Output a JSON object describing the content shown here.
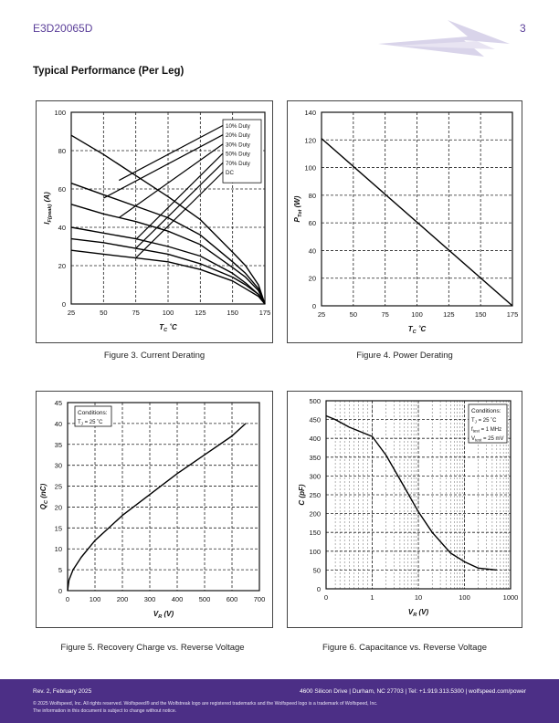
{
  "header": {
    "part_number": "E3D20065D",
    "page_number": "3",
    "brand_color": "#5b3f99"
  },
  "section_title": "Typical Performance (Per Leg)",
  "figures": [
    {
      "caption": "Figure 3. Current Derating"
    },
    {
      "caption": "Figure 4. Power Derating"
    },
    {
      "caption": "Figure 5. Recovery Charge vs. Reverse Voltage"
    },
    {
      "caption": "Figure 6. Capacitance vs. Reverse Voltage"
    }
  ],
  "chart_data": [
    {
      "type": "line",
      "xlabel": "T_C ˚C",
      "ylabel": "I_F(peak) (A)",
      "xlim": [
        25,
        175
      ],
      "ylim": [
        0,
        100
      ],
      "xticks": [
        25,
        50,
        75,
        100,
        125,
        150,
        175
      ],
      "yticks": [
        0,
        20,
        40,
        60,
        80,
        100
      ],
      "grid": true,
      "legend_position": "top-right",
      "x": [
        25,
        50,
        75,
        100,
        125,
        150,
        160,
        170,
        175
      ],
      "series": [
        {
          "name": "10% Duty",
          "values": [
            88,
            78,
            67,
            56,
            44,
            27,
            20,
            10,
            0
          ]
        },
        {
          "name": "20% Duty",
          "values": [
            63,
            57,
            51,
            45,
            36,
            22,
            16,
            8,
            0
          ]
        },
        {
          "name": "30% Duty",
          "values": [
            52,
            47,
            43,
            38,
            31,
            19,
            14,
            7,
            0
          ]
        },
        {
          "name": "50% Duty",
          "values": [
            40,
            37,
            34,
            30,
            25,
            16,
            11,
            5,
            0
          ]
        },
        {
          "name": "70% Duty",
          "values": [
            34,
            32,
            29,
            26,
            21,
            14,
            10,
            5,
            0
          ]
        },
        {
          "name": "DC",
          "values": [
            28,
            26,
            24,
            22,
            18,
            12,
            8,
            4,
            0
          ]
        }
      ]
    },
    {
      "type": "line",
      "xlabel": "T_C ˚C",
      "ylabel": "P_Tot (W)",
      "xlim": [
        25,
        175
      ],
      "ylim": [
        0,
        140
      ],
      "xticks": [
        25,
        50,
        75,
        100,
        125,
        150,
        175
      ],
      "yticks": [
        0,
        20,
        40,
        60,
        80,
        100,
        120,
        140
      ],
      "grid": true,
      "x": [
        25,
        175
      ],
      "series": [
        {
          "values": [
            121,
            0
          ]
        }
      ]
    },
    {
      "type": "line",
      "xlabel": "V_R (V)",
      "ylabel": "Q_C (nC)",
      "xlim": [
        0,
        700
      ],
      "ylim": [
        0,
        45
      ],
      "xticks": [
        0,
        100,
        200,
        300,
        400,
        500,
        600,
        700
      ],
      "yticks": [
        0,
        5,
        10,
        15,
        20,
        25,
        30,
        35,
        40,
        45
      ],
      "grid": true,
      "conditions_title": "Conditions:",
      "conditions": [
        "T_J = 25 ˚C"
      ],
      "x": [
        0,
        5,
        20,
        50,
        100,
        150,
        200,
        300,
        400,
        500,
        600,
        650
      ],
      "series": [
        {
          "values": [
            0,
            2.5,
            5,
            8,
            12,
            15,
            18,
            23,
            28,
            32.5,
            37,
            40
          ]
        }
      ]
    },
    {
      "type": "line",
      "xlabel": "V_R (V)",
      "ylabel": "C (pF)",
      "xscale": "log",
      "xlim": [
        0,
        1000
      ],
      "ylim": [
        0,
        500
      ],
      "xticks": [
        0,
        1,
        10,
        100,
        1000
      ],
      "yticks": [
        0,
        50,
        100,
        150,
        200,
        250,
        300,
        350,
        400,
        450,
        500
      ],
      "grid": true,
      "conditions_title": "Conditions:",
      "conditions": [
        "T_J = 25 ˚C",
        "f_test = 1 MHz",
        "V_test = 25 mV"
      ],
      "x": [
        0,
        0.2,
        0.5,
        1,
        2,
        5,
        10,
        20,
        50,
        100,
        200,
        500
      ],
      "series": [
        {
          "values": [
            460,
            450,
            430,
            405,
            355,
            270,
            205,
            150,
            95,
            72,
            55,
            50
          ]
        }
      ]
    }
  ],
  "footer": {
    "revision": "Rev. 2, February 2025",
    "contact": "4600 Silicon Drive | Durham, NC 27703 | Tel: +1.919.313.5300 | wolfspeed.com/power",
    "copyright": "© 2025 Wolfspeed, Inc. All rights reserved. Wolfspeed® and the Wolfstreak logo are registered trademarks and the Wolfspeed logo is a trademark of Wolfspeed, Inc.",
    "disclaimer": "The information in this document is subject to change without notice.",
    "band_color": "#4c2f86"
  }
}
